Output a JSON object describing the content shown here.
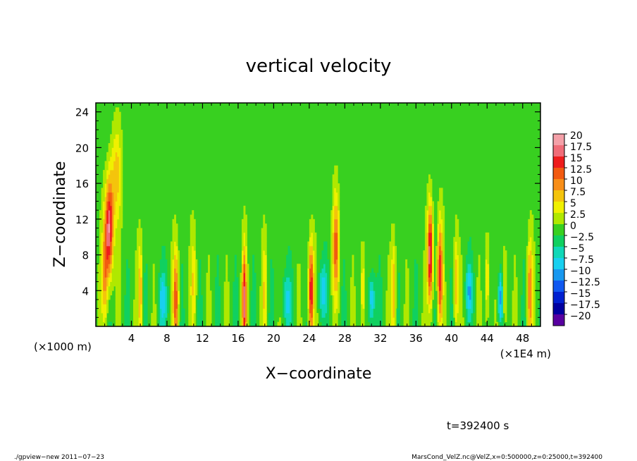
{
  "chart_data": {
    "type": "heatmap",
    "title": "vertical velocity",
    "xlabel": "X−coordinate",
    "ylabel": "Z−coordinate",
    "x_unit_left": "(×1000 m)",
    "x_unit_right": "(×1E4 m)",
    "xlim": [
      0,
      50
    ],
    "ylim": [
      0,
      25
    ],
    "x_ticks": [
      4,
      8,
      12,
      16,
      20,
      24,
      28,
      32,
      36,
      40,
      44,
      48
    ],
    "y_ticks": [
      4,
      8,
      12,
      16,
      20,
      24
    ],
    "x_tick_labels": [
      "4",
      "8",
      "12",
      "16",
      "20",
      "24",
      "28",
      "32",
      "36",
      "40",
      "44",
      "48"
    ],
    "y_tick_labels": [
      "4",
      "8",
      "12",
      "16",
      "20",
      "24"
    ],
    "colorbar": {
      "labels": [
        "20",
        "17.5",
        "15",
        "12.5",
        "10",
        "7.5",
        "5",
        "2.5",
        "0",
        "−2.5",
        "−5",
        "−7.5",
        "−10",
        "−12.5",
        "−15",
        "−17.5",
        "−20"
      ],
      "levels": [
        20,
        17.5,
        15,
        12.5,
        10,
        7.5,
        5,
        2.5,
        0,
        -2.5,
        -5,
        -7.5,
        -10,
        -12.5,
        -15,
        -17.5,
        -20
      ],
      "colors": [
        "#f4a0a8",
        "#f06c78",
        "#ee1c1c",
        "#f25a10",
        "#f88e18",
        "#f4c40c",
        "#f0f000",
        "#b0e800",
        "#38d020",
        "#10d060",
        "#10d8b8",
        "#18d0f0",
        "#1898f0",
        "#1058f0",
        "#0020d0",
        "#0000a0",
        "#5800a0"
      ]
    },
    "background_value": 0,
    "plumes": [
      {
        "x": 1.5,
        "amp": 19,
        "z_center": 11,
        "width": 0.45
      },
      {
        "x": 1.0,
        "amp": 9,
        "z_center": 6,
        "width": 0.35
      },
      {
        "x": 2.3,
        "amp": 7,
        "z_center": 17,
        "width": 0.6
      },
      {
        "x": 5.0,
        "amp": 8,
        "z_center": 4,
        "width": 0.25
      },
      {
        "x": 9.0,
        "amp": 13,
        "z_center": 3,
        "width": 0.3
      },
      {
        "x": 11.0,
        "amp": 6,
        "z_center": 5,
        "width": 0.3
      },
      {
        "x": 16.7,
        "amp": 16,
        "z_center": 3,
        "width": 0.25
      },
      {
        "x": 19.0,
        "amp": 6,
        "z_center": 4,
        "width": 0.25
      },
      {
        "x": 24.2,
        "amp": 17,
        "z_center": 4,
        "width": 0.3
      },
      {
        "x": 27.0,
        "amp": 12,
        "z_center": 9,
        "width": 0.35
      },
      {
        "x": 30.0,
        "amp": 7,
        "z_center": 4,
        "width": 0.25
      },
      {
        "x": 33.5,
        "amp": 9,
        "z_center": 4,
        "width": 0.25
      },
      {
        "x": 37.6,
        "amp": 19,
        "z_center": 8,
        "width": 0.3
      },
      {
        "x": 38.7,
        "amp": 15,
        "z_center": 6,
        "width": 0.3
      },
      {
        "x": 40.5,
        "amp": 8,
        "z_center": 5,
        "width": 0.25
      },
      {
        "x": 44.0,
        "amp": 7,
        "z_center": 5,
        "width": 0.25
      },
      {
        "x": 46.0,
        "amp": 6,
        "z_center": 4,
        "width": 0.25
      },
      {
        "x": 48.8,
        "amp": 11,
        "z_center": 4,
        "width": 0.3
      }
    ],
    "downdrafts": [
      {
        "x": 7.5,
        "amp": -7,
        "z_center": 3,
        "width": 0.5
      },
      {
        "x": 21.5,
        "amp": -6,
        "z_center": 3,
        "width": 0.6
      },
      {
        "x": 25.5,
        "amp": -7,
        "z_center": 4,
        "width": 0.5
      },
      {
        "x": 31.0,
        "amp": -9,
        "z_center": 3,
        "width": 0.4
      },
      {
        "x": 42.0,
        "amp": -8,
        "z_center": 4,
        "width": 0.4
      },
      {
        "x": 45.5,
        "amp": -10,
        "z_center": 3,
        "width": 0.3
      }
    ]
  },
  "time_label": "t=392400 s",
  "footer_left": "./gpview−new   2011−07−23",
  "footer_right": "MarsCond_VelZ.nc@VelZ,x=0:500000,z=0:25000,t=392400"
}
